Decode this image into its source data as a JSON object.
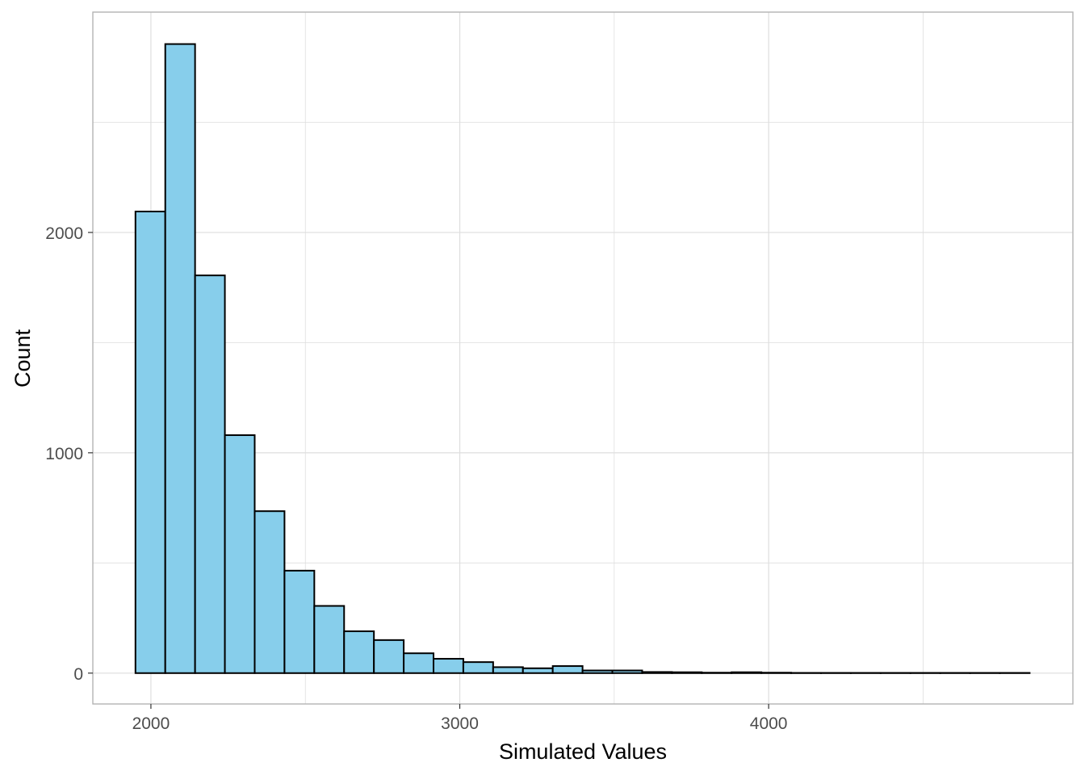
{
  "chart_data": {
    "type": "bar",
    "title": "",
    "xlabel": "Simulated Values",
    "ylabel": "Count",
    "bin_width": 96.5,
    "x_bins_left_edges": [
      1950,
      2046.5,
      2143,
      2239.5,
      2336,
      2432.5,
      2529,
      2625.5,
      2722,
      2818.5,
      2915,
      3011.5,
      3108,
      3204.5,
      3301,
      3397.5,
      3494,
      3590.5,
      3687,
      3783.5,
      3880,
      3976.5,
      4073,
      4169.5,
      4266,
      4362.5,
      4459,
      4555.5,
      4652,
      4748.5
    ],
    "values": [
      2095,
      2855,
      1805,
      1080,
      735,
      465,
      305,
      190,
      150,
      90,
      65,
      50,
      27,
      22,
      32,
      12,
      12,
      5,
      4,
      2,
      4,
      2,
      1,
      1,
      1,
      1,
      1,
      1,
      1,
      1
    ],
    "xlim": [
      1812,
      4985
    ],
    "ylim": [
      -140,
      3000
    ],
    "x_ticks": [
      2000,
      3000,
      4000
    ],
    "x_tick_labels": [
      "2000",
      "3000",
      "4000"
    ],
    "x_minor_ticks": [
      2500,
      3500,
      4500
    ],
    "y_ticks": [
      0,
      1000,
      2000
    ],
    "y_tick_labels": [
      "0",
      "1000",
      "2000"
    ],
    "y_minor_ticks": [
      500,
      1500,
      2500
    ],
    "grid": true,
    "legend": "none",
    "colors": {
      "bar_fill": "#87CEEB",
      "bar_stroke": "#000000",
      "grid": "#DEDEDE",
      "panel_border": "#B3B3B3",
      "tick_label": "#4D4D4D"
    }
  }
}
